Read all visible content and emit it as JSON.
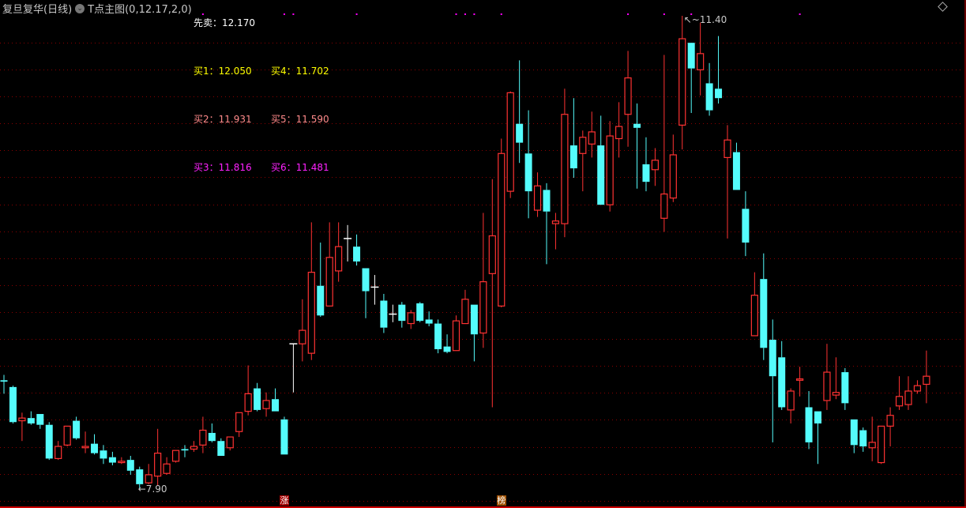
{
  "header": {
    "stock_title": "复旦复华(日线)",
    "indicator_title": "T点主图(0,12.17,2,0)",
    "dropdown_icon": "chevron-circle-icon",
    "corner_icon": "diamond-icon"
  },
  "levels": {
    "sell_first": {
      "label": "先卖：",
      "value": "12.170",
      "color": "#ffffff"
    },
    "buy1": {
      "label": "买1：",
      "value": "12.050",
      "color": "#ffff00"
    },
    "buy4": {
      "label": "买4：",
      "value": "11.702",
      "color": "#ffff00"
    },
    "buy2": {
      "label": "买2：",
      "value": "11.931",
      "color": "#ff8a8a"
    },
    "buy5": {
      "label": "买5：",
      "value": "11.590",
      "color": "#ff8a8a"
    },
    "buy3": {
      "label": "买3：",
      "value": "11.816",
      "color": "#ff22ff"
    },
    "buy6": {
      "label": "买6：",
      "value": "11.481",
      "color": "#ff22ff"
    }
  },
  "badges": [
    {
      "text": "涨",
      "candle": 32,
      "color": "#a00000"
    },
    {
      "text": "榜",
      "candle": 56,
      "color": "#a05000"
    }
  ],
  "chart_data": {
    "type": "candlestick",
    "title": "",
    "ylim": [
      7.9,
      11.4
    ],
    "grid": true,
    "colors": {
      "up": "#ff3232",
      "down": "#54fcfc",
      "doji": "#ffffff",
      "grid": "#8b0000",
      "signal": "#ff00ff"
    },
    "high_label": "11.40",
    "low_label": "7.90",
    "high_candle": 76,
    "low_candle": 16,
    "signal_candles": [
      23,
      32,
      33,
      40,
      51,
      52,
      53,
      56,
      70,
      74,
      77,
      89
    ],
    "ohlc": [
      [
        8.7,
        8.74,
        8.6,
        8.69
      ],
      [
        8.65,
        8.66,
        8.38,
        8.39
      ],
      [
        8.4,
        8.46,
        8.25,
        8.42
      ],
      [
        8.42,
        8.47,
        8.37,
        8.38
      ],
      [
        8.45,
        8.45,
        8.34,
        8.37
      ],
      [
        8.37,
        8.39,
        8.11,
        8.12
      ],
      [
        8.12,
        8.25,
        8.11,
        8.21
      ],
      [
        8.22,
        8.36,
        8.21,
        8.36
      ],
      [
        8.4,
        8.43,
        8.26,
        8.27
      ],
      [
        8.2,
        8.32,
        8.16,
        8.21
      ],
      [
        8.23,
        8.3,
        8.15,
        8.16
      ],
      [
        8.18,
        8.22,
        8.08,
        8.12
      ],
      [
        8.13,
        8.17,
        8.07,
        8.09
      ],
      [
        8.09,
        8.13,
        8.08,
        8.1
      ],
      [
        8.11,
        8.14,
        8.0,
        8.03
      ],
      [
        8.04,
        8.06,
        7.9,
        7.93
      ],
      [
        7.94,
        8.08,
        7.93,
        8.0
      ],
      [
        7.99,
        8.34,
        7.92,
        8.16
      ],
      [
        8.01,
        8.13,
        8.0,
        8.08
      ],
      [
        8.1,
        8.18,
        8.09,
        8.18
      ],
      [
        8.19,
        8.22,
        8.13,
        8.18
      ],
      [
        8.19,
        8.25,
        8.17,
        8.21
      ],
      [
        8.22,
        8.43,
        8.16,
        8.33
      ],
      [
        8.31,
        8.38,
        8.24,
        8.25
      ],
      [
        8.25,
        8.27,
        8.14,
        8.14
      ],
      [
        8.2,
        8.28,
        8.18,
        8.28
      ],
      [
        8.32,
        8.46,
        8.28,
        8.46
      ],
      [
        8.47,
        8.81,
        8.44,
        8.6
      ],
      [
        8.64,
        8.68,
        8.47,
        8.48
      ],
      [
        8.49,
        8.61,
        8.43,
        8.55
      ],
      [
        8.56,
        8.64,
        8.47,
        8.47
      ],
      [
        8.41,
        8.43,
        8.15,
        8.15
      ],
      [
        8.97,
        8.97,
        8.61,
        8.97
      ],
      [
        8.97,
        9.3,
        8.84,
        9.07
      ],
      [
        8.9,
        9.87,
        8.85,
        9.5
      ],
      [
        9.4,
        9.72,
        9.17,
        9.18
      ],
      [
        9.25,
        9.87,
        9.25,
        9.61
      ],
      [
        9.51,
        9.87,
        9.43,
        9.69
      ],
      [
        9.75,
        9.85,
        9.58,
        9.75
      ],
      [
        9.69,
        9.78,
        9.55,
        9.58
      ],
      [
        9.53,
        9.53,
        9.16,
        9.36
      ],
      [
        9.39,
        9.48,
        9.26,
        9.39
      ],
      [
        9.29,
        9.34,
        9.05,
        9.09
      ],
      [
        9.19,
        9.26,
        9.13,
        9.19
      ],
      [
        9.26,
        9.28,
        9.09,
        9.14
      ],
      [
        9.12,
        9.22,
        9.08,
        9.2
      ],
      [
        9.27,
        9.28,
        9.13,
        9.14
      ],
      [
        9.15,
        9.21,
        9.1,
        9.12
      ],
      [
        9.12,
        9.15,
        8.9,
        8.93
      ],
      [
        8.95,
        9.04,
        8.9,
        8.91
      ],
      [
        8.92,
        9.18,
        8.92,
        9.14
      ],
      [
        9.12,
        9.37,
        9.12,
        9.3
      ],
      [
        9.26,
        9.26,
        8.84,
        9.04
      ],
      [
        9.05,
        9.94,
        8.94,
        9.43
      ],
      [
        9.49,
        10.19,
        8.5,
        9.77
      ],
      [
        9.25,
        10.49,
        9.24,
        10.38
      ],
      [
        10.1,
        10.84,
        10.05,
        10.83
      ],
      [
        10.6,
        11.07,
        10.31,
        10.46
      ],
      [
        10.38,
        10.7,
        9.9,
        10.1
      ],
      [
        9.96,
        10.24,
        9.91,
        10.14
      ],
      [
        10.11,
        10.16,
        9.56,
        9.95
      ],
      [
        9.86,
        9.94,
        9.67,
        9.88
      ],
      [
        9.86,
        10.86,
        9.76,
        10.67
      ],
      [
        10.44,
        10.79,
        10.2,
        10.27
      ],
      [
        10.38,
        10.55,
        10.1,
        10.5
      ],
      [
        10.45,
        10.69,
        10.35,
        10.54
      ],
      [
        10.44,
        10.66,
        10.0,
        10.0
      ],
      [
        10.0,
        10.62,
        9.95,
        10.51
      ],
      [
        10.49,
        10.76,
        10.35,
        10.58
      ],
      [
        10.67,
        11.14,
        10.43,
        10.94
      ],
      [
        10.6,
        10.75,
        10.12,
        10.57
      ],
      [
        10.3,
        10.5,
        10.1,
        10.17
      ],
      [
        10.26,
        10.42,
        10.14,
        10.33
      ],
      [
        9.9,
        11.11,
        9.8,
        10.08
      ],
      [
        10.05,
        10.52,
        10.02,
        10.37
      ],
      [
        10.59,
        11.4,
        10.41,
        11.23
      ],
      [
        11.2,
        11.2,
        10.68,
        11.01
      ],
      [
        11.0,
        11.35,
        10.81,
        11.12
      ],
      [
        10.9,
        11.05,
        10.66,
        10.7
      ],
      [
        10.86,
        11.25,
        10.75,
        10.79
      ],
      [
        10.35,
        10.59,
        9.75,
        10.48
      ],
      [
        10.39,
        10.46,
        10.11,
        10.11
      ],
      [
        9.97,
        10.1,
        9.62,
        9.72
      ],
      [
        9.03,
        9.5,
        9.03,
        9.33
      ],
      [
        9.45,
        9.64,
        8.85,
        8.94
      ],
      [
        9.0,
        9.15,
        8.24,
        8.73
      ],
      [
        8.87,
        8.99,
        8.48,
        8.5
      ],
      [
        8.48,
        8.64,
        8.38,
        8.62
      ],
      [
        8.7,
        8.8,
        8.58,
        8.71
      ],
      [
        8.5,
        8.62,
        8.19,
        8.24
      ],
      [
        8.47,
        8.47,
        8.08,
        8.38
      ],
      [
        8.55,
        8.97,
        8.48,
        8.76
      ],
      [
        8.59,
        8.87,
        8.56,
        8.61
      ],
      [
        8.76,
        8.79,
        8.48,
        8.53
      ],
      [
        8.41,
        8.41,
        8.16,
        8.22
      ],
      [
        8.33,
        8.35,
        8.17,
        8.21
      ],
      [
        8.2,
        8.43,
        8.1,
        8.24
      ],
      [
        8.09,
        8.36,
        8.08,
        8.36
      ],
      [
        8.36,
        8.5,
        8.21,
        8.44
      ],
      [
        8.51,
        8.73,
        8.48,
        8.58
      ],
      [
        8.52,
        8.73,
        8.48,
        8.62
      ],
      [
        8.62,
        8.7,
        8.6,
        8.66
      ],
      [
        8.67,
        8.92,
        8.53,
        8.73
      ]
    ]
  }
}
